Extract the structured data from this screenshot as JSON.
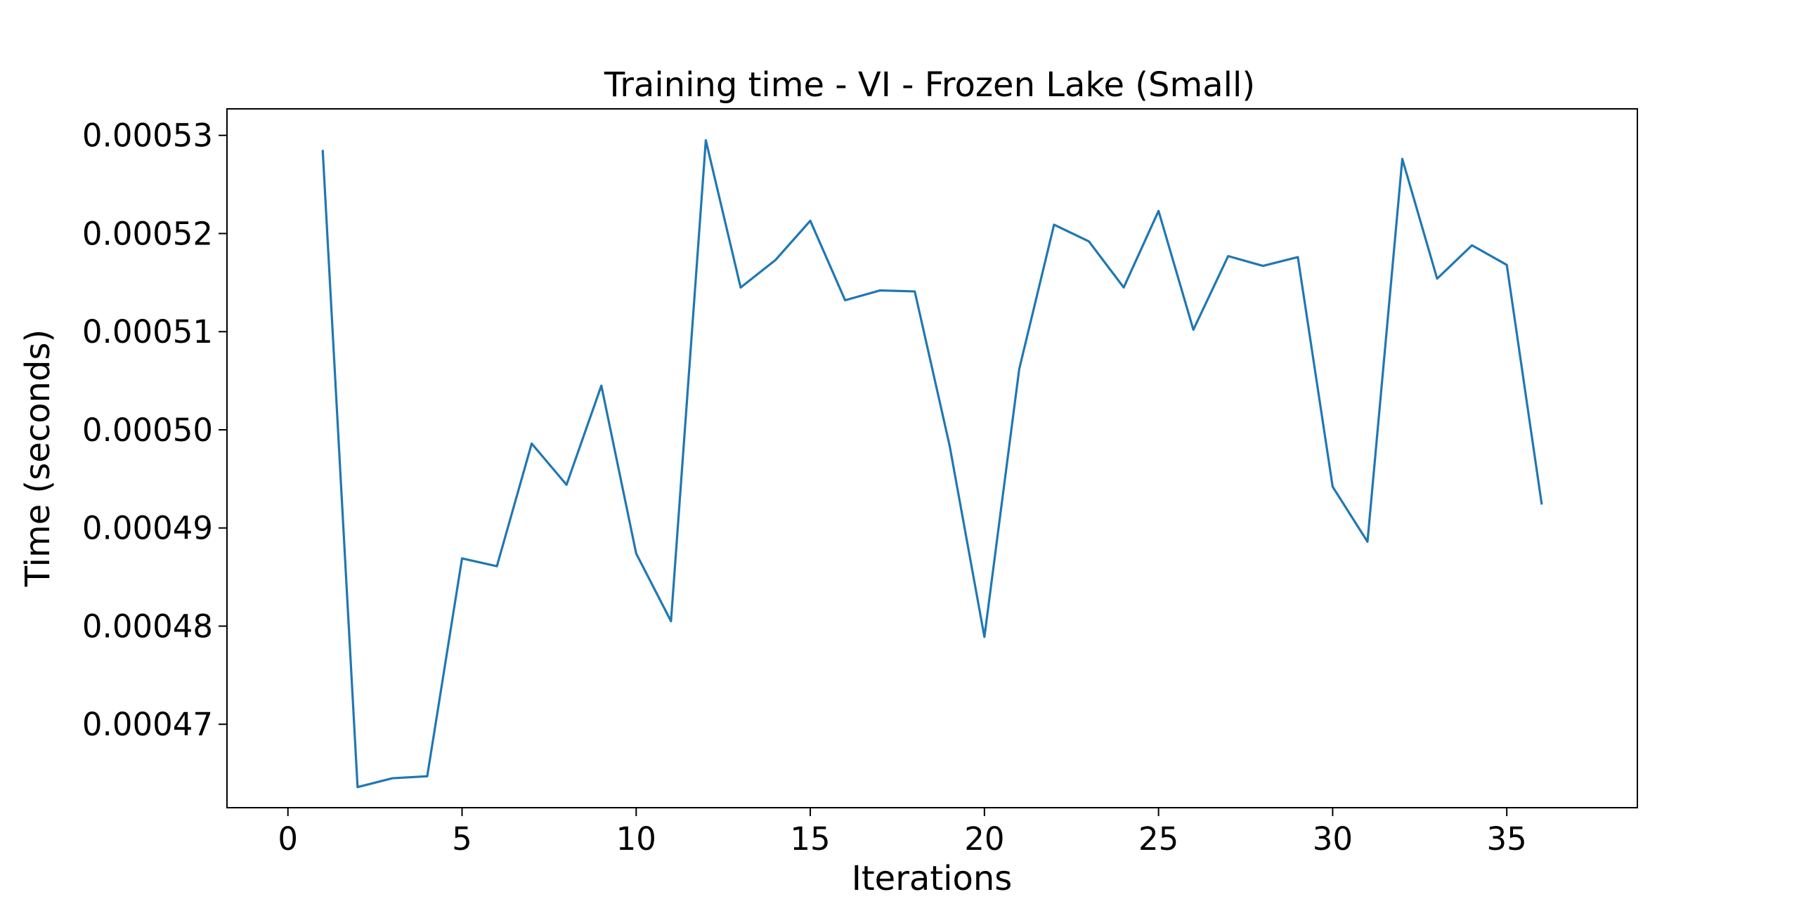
{
  "chart_data": {
    "type": "line",
    "title": "Training time - VI - Frozen Lake (Small)",
    "xlabel": "Iterations",
    "ylabel": "Time (seconds)",
    "xlim": [
      -1.75,
      38.75
    ],
    "ylim": [
      0.0004615,
      0.0005327
    ],
    "x_ticks": [
      0,
      5,
      10,
      15,
      20,
      25,
      30,
      35
    ],
    "y_ticks": [
      0.00047,
      0.00048,
      0.00049,
      0.0005,
      0.00051,
      0.00052,
      0.00053
    ],
    "x_tick_labels": [
      "0",
      "5",
      "10",
      "15",
      "20",
      "25",
      "30",
      "35"
    ],
    "y_tick_labels": [
      "0.00047",
      "0.00048",
      "0.00049",
      "0.00050",
      "0.00051",
      "0.00052",
      "0.00053"
    ],
    "grid": false,
    "line_color": "#1f77b4",
    "series": [
      {
        "x": [
          1,
          2,
          3,
          4,
          5,
          6,
          7,
          8,
          9,
          10,
          11,
          12,
          13,
          14,
          15,
          16,
          17,
          18,
          19,
          20,
          21,
          22,
          23,
          24,
          25,
          26,
          27,
          28,
          29,
          30,
          31,
          32,
          33,
          34,
          35,
          36
        ],
        "values": [
          0.0005284,
          0.0004636,
          0.0004645,
          0.0004647,
          0.0004869,
          0.0004861,
          0.0004986,
          0.0004944,
          0.0005045,
          0.0004874,
          0.0004805,
          0.0005295,
          0.0005145,
          0.0005173,
          0.0005213,
          0.0005132,
          0.0005142,
          0.0005141,
          0.0004984,
          0.0004789,
          0.0005062,
          0.0005209,
          0.0005192,
          0.0005145,
          0.0005223,
          0.0005102,
          0.0005177,
          0.0005167,
          0.0005176,
          0.0004942,
          0.0004886,
          0.0005276,
          0.0005154,
          0.0005188,
          0.0005168,
          0.0004925
        ]
      }
    ]
  }
}
